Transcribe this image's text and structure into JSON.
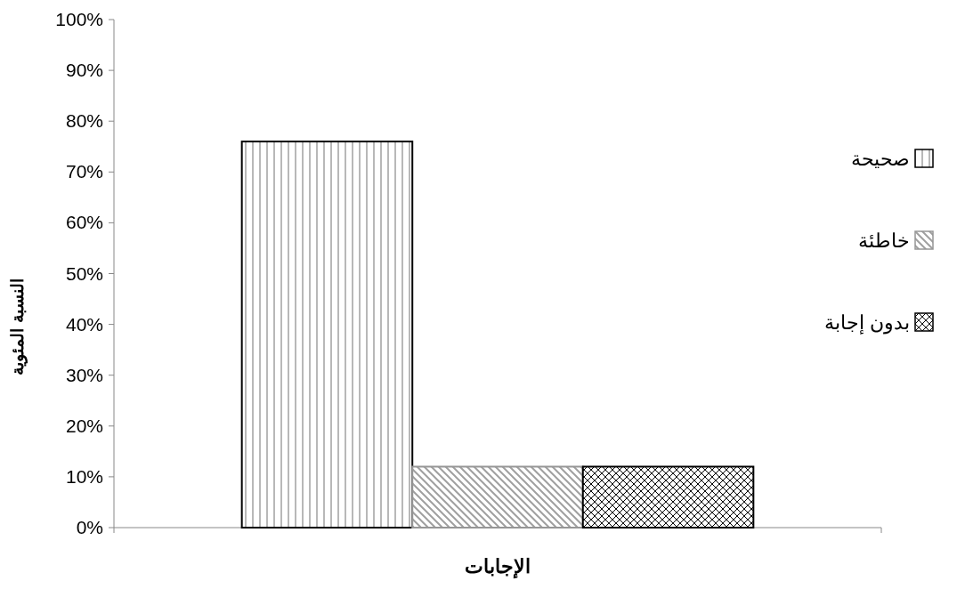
{
  "chart_data": {
    "type": "bar",
    "xlabel": "الإجابات",
    "ylabel": "النسبة المئوية",
    "categories": [
      null
    ],
    "series": [
      {
        "name": "صحيحة",
        "color": "#000000",
        "values": [
          76
        ]
      },
      {
        "name": "خاطئة",
        "color": "#969696",
        "values": [
          12
        ]
      },
      {
        "name": "بدون إجابة",
        "color": "#000000",
        "values": [
          12
        ]
      }
    ],
    "ylim": [
      0,
      100
    ],
    "yticks": [
      {
        "value": 0,
        "label": "0%"
      },
      {
        "value": 10,
        "label": "10%"
      },
      {
        "value": 20,
        "label": "20%"
      },
      {
        "value": 30,
        "label": "30%"
      },
      {
        "value": 40,
        "label": "40%"
      },
      {
        "value": 50,
        "label": "50%"
      },
      {
        "value": 60,
        "label": "60%"
      },
      {
        "value": 70,
        "label": "70%"
      },
      {
        "value": 80,
        "label": "80%"
      },
      {
        "value": 90,
        "label": "90%"
      },
      {
        "value": 100,
        "label": "100%"
      }
    ],
    "grid": false,
    "legend": "right"
  }
}
